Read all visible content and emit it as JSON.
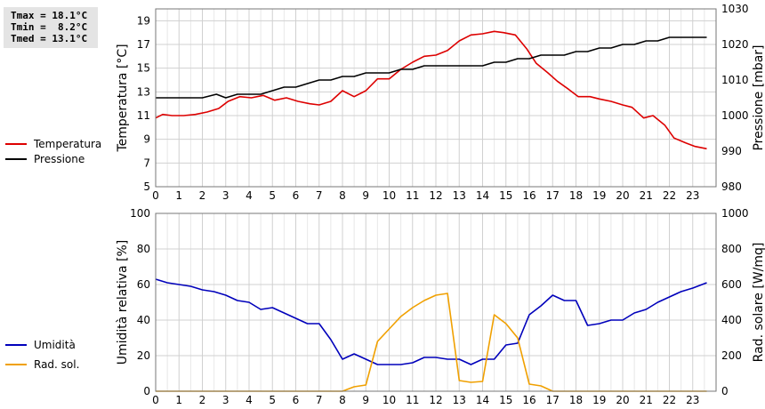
{
  "stats": {
    "tmax": "Tmax = 18.1°C",
    "tmin": "Tmin =  8.2°C",
    "tmed": "Tmed = 13.1°C"
  },
  "colors": {
    "temperature": "#dd0000",
    "pressure": "#000000",
    "humidity": "#0000bb",
    "radiation": "#f0a000",
    "grid": "#d0d0d0",
    "border": "#777777"
  },
  "legend_top": [
    {
      "label": "Temperatura",
      "color": "#dd0000"
    },
    {
      "label": "Pressione",
      "color": "#000000"
    }
  ],
  "legend_bottom": [
    {
      "label": "Umidità",
      "color": "#0000bb"
    },
    {
      "label": "Rad. sol.",
      "color": "#f0a000"
    }
  ],
  "chart_data": [
    {
      "type": "line",
      "xlabel": "",
      "xlim": [
        0,
        24
      ],
      "x_ticks": [
        "0",
        "1",
        "2",
        "3",
        "4",
        "5",
        "6",
        "7",
        "8",
        "9",
        "10",
        "11",
        "12",
        "13",
        "14",
        "15",
        "16",
        "17",
        "18",
        "19",
        "20",
        "21",
        "22",
        "23"
      ],
      "ylabel": "Temperatura [°C]",
      "ylim": [
        5,
        20
      ],
      "y_ticks": [
        "5",
        "7",
        "9",
        "11",
        "13",
        "15",
        "17",
        "19"
      ],
      "y2label": "Pressione [mbar]",
      "y2lim": [
        980,
        1030
      ],
      "y2_ticks": [
        "980",
        "990",
        "1000",
        "1010",
        "1020",
        "1030"
      ],
      "grid": true,
      "series": [
        {
          "name": "Temperatura",
          "axis": "left",
          "color": "#dd0000",
          "points": [
            [
              0,
              10.8
            ],
            [
              0.3,
              11.1
            ],
            [
              0.7,
              11.0
            ],
            [
              1.2,
              11.0
            ],
            [
              1.7,
              11.1
            ],
            [
              2.2,
              11.3
            ],
            [
              2.7,
              11.6
            ],
            [
              3.1,
              12.2
            ],
            [
              3.6,
              12.6
            ],
            [
              4.1,
              12.5
            ],
            [
              4.6,
              12.7
            ],
            [
              5.1,
              12.3
            ],
            [
              5.6,
              12.5
            ],
            [
              6.1,
              12.2
            ],
            [
              6.6,
              12.0
            ],
            [
              7.0,
              11.9
            ],
            [
              7.5,
              12.2
            ],
            [
              8.0,
              13.1
            ],
            [
              8.5,
              12.6
            ],
            [
              9.0,
              13.1
            ],
            [
              9.5,
              14.1
            ],
            [
              10.0,
              14.1
            ],
            [
              10.5,
              14.9
            ],
            [
              11.0,
              15.5
            ],
            [
              11.5,
              16.0
            ],
            [
              12.0,
              16.1
            ],
            [
              12.5,
              16.5
            ],
            [
              13.0,
              17.3
            ],
            [
              13.5,
              17.8
            ],
            [
              14.0,
              17.9
            ],
            [
              14.5,
              18.1
            ],
            [
              14.9,
              18.0
            ],
            [
              15.4,
              17.8
            ],
            [
              15.9,
              16.6
            ],
            [
              16.3,
              15.4
            ],
            [
              16.8,
              14.6
            ],
            [
              17.2,
              13.9
            ],
            [
              17.7,
              13.2
            ],
            [
              18.1,
              12.6
            ],
            [
              18.6,
              12.6
            ],
            [
              19.0,
              12.4
            ],
            [
              19.5,
              12.2
            ],
            [
              20.0,
              11.9
            ],
            [
              20.4,
              11.7
            ],
            [
              20.9,
              10.8
            ],
            [
              21.3,
              11.0
            ],
            [
              21.8,
              10.2
            ],
            [
              22.2,
              9.1
            ],
            [
              22.7,
              8.7
            ],
            [
              23.1,
              8.4
            ],
            [
              23.6,
              8.2
            ]
          ]
        },
        {
          "name": "Pressione",
          "axis": "right",
          "color": "#000000",
          "points": [
            [
              0,
              1005
            ],
            [
              0.5,
              1005
            ],
            [
              1,
              1005
            ],
            [
              1.5,
              1005
            ],
            [
              2,
              1005
            ],
            [
              2.6,
              1006
            ],
            [
              3.0,
              1005
            ],
            [
              3.5,
              1006
            ],
            [
              4,
              1006
            ],
            [
              4.5,
              1006
            ],
            [
              5,
              1007
            ],
            [
              5.5,
              1008
            ],
            [
              6,
              1008
            ],
            [
              6.5,
              1009
            ],
            [
              7,
              1010
            ],
            [
              7.5,
              1010
            ],
            [
              8,
              1011
            ],
            [
              8.5,
              1011
            ],
            [
              9,
              1012
            ],
            [
              9.5,
              1012
            ],
            [
              10,
              1012
            ],
            [
              10.5,
              1013
            ],
            [
              11,
              1013
            ],
            [
              11.5,
              1014
            ],
            [
              12,
              1014
            ],
            [
              12.5,
              1014
            ],
            [
              13,
              1014
            ],
            [
              13.5,
              1014
            ],
            [
              14,
              1014
            ],
            [
              14.5,
              1015
            ],
            [
              15,
              1015
            ],
            [
              15.5,
              1016
            ],
            [
              16,
              1016
            ],
            [
              16.5,
              1017
            ],
            [
              17,
              1017
            ],
            [
              17.5,
              1017
            ],
            [
              18,
              1018
            ],
            [
              18.5,
              1018
            ],
            [
              19,
              1019
            ],
            [
              19.5,
              1019
            ],
            [
              20,
              1020
            ],
            [
              20.5,
              1020
            ],
            [
              21,
              1021
            ],
            [
              21.5,
              1021
            ],
            [
              22,
              1022
            ],
            [
              22.5,
              1022
            ],
            [
              23,
              1022
            ],
            [
              23.6,
              1022
            ]
          ]
        }
      ]
    },
    {
      "type": "line",
      "xlabel": "",
      "xlim": [
        0,
        24
      ],
      "x_ticks": [
        "0",
        "1",
        "2",
        "3",
        "4",
        "5",
        "6",
        "7",
        "8",
        "9",
        "10",
        "11",
        "12",
        "13",
        "14",
        "15",
        "16",
        "17",
        "18",
        "19",
        "20",
        "21",
        "22",
        "23"
      ],
      "ylabel": "Umidità relativa [%]",
      "ylim": [
        0,
        100
      ],
      "y_ticks": [
        "0",
        "20",
        "40",
        "60",
        "80",
        "100"
      ],
      "y2label": "Rad. solare [W/mq]",
      "y2lim": [
        0,
        1000
      ],
      "y2_ticks": [
        "0",
        "200",
        "400",
        "600",
        "800",
        "1000"
      ],
      "grid": true,
      "series": [
        {
          "name": "Umidità",
          "axis": "left",
          "color": "#0000bb",
          "points": [
            [
              0,
              63
            ],
            [
              0.5,
              61
            ],
            [
              1,
              60
            ],
            [
              1.5,
              59
            ],
            [
              2,
              57
            ],
            [
              2.5,
              56
            ],
            [
              3,
              54
            ],
            [
              3.5,
              51
            ],
            [
              4,
              50
            ],
            [
              4.5,
              46
            ],
            [
              5,
              47
            ],
            [
              5.5,
              44
            ],
            [
              6,
              41
            ],
            [
              6.5,
              38
            ],
            [
              7,
              38
            ],
            [
              7.5,
              29
            ],
            [
              8,
              18
            ],
            [
              8.5,
              21
            ],
            [
              9,
              18
            ],
            [
              9.5,
              15
            ],
            [
              10,
              15
            ],
            [
              10.5,
              15
            ],
            [
              11,
              16
            ],
            [
              11.5,
              19
            ],
            [
              12,
              19
            ],
            [
              12.5,
              18
            ],
            [
              13,
              18
            ],
            [
              13.5,
              15
            ],
            [
              14,
              18
            ],
            [
              14.5,
              18
            ],
            [
              15,
              26
            ],
            [
              15.5,
              27
            ],
            [
              16,
              43
            ],
            [
              16.5,
              48
            ],
            [
              17,
              54
            ],
            [
              17.5,
              51
            ],
            [
              18,
              51
            ],
            [
              18.5,
              37
            ],
            [
              19,
              38
            ],
            [
              19.5,
              40
            ],
            [
              20,
              40
            ],
            [
              20.5,
              44
            ],
            [
              21,
              46
            ],
            [
              21.5,
              50
            ],
            [
              22,
              53
            ],
            [
              22.5,
              56
            ],
            [
              23,
              58
            ],
            [
              23.6,
              61
            ]
          ]
        },
        {
          "name": "Rad. sol.",
          "axis": "right",
          "color": "#f0a000",
          "points": [
            [
              0,
              0
            ],
            [
              1,
              0
            ],
            [
              2,
              0
            ],
            [
              3,
              0
            ],
            [
              4,
              0
            ],
            [
              5,
              0
            ],
            [
              6,
              0
            ],
            [
              7,
              0
            ],
            [
              8,
              0
            ],
            [
              8.5,
              25
            ],
            [
              9,
              35
            ],
            [
              9.5,
              280
            ],
            [
              10,
              350
            ],
            [
              10.5,
              420
            ],
            [
              11,
              470
            ],
            [
              11.5,
              510
            ],
            [
              12,
              540
            ],
            [
              12.5,
              550
            ],
            [
              13,
              60
            ],
            [
              13.5,
              50
            ],
            [
              14,
              55
            ],
            [
              14.5,
              430
            ],
            [
              15,
              380
            ],
            [
              15.5,
              300
            ],
            [
              16,
              40
            ],
            [
              16.5,
              30
            ],
            [
              17,
              0
            ],
            [
              18,
              0
            ],
            [
              19,
              0
            ],
            [
              20,
              0
            ],
            [
              21,
              0
            ],
            [
              22,
              0
            ],
            [
              23,
              0
            ],
            [
              23.6,
              0
            ]
          ]
        }
      ]
    }
  ]
}
